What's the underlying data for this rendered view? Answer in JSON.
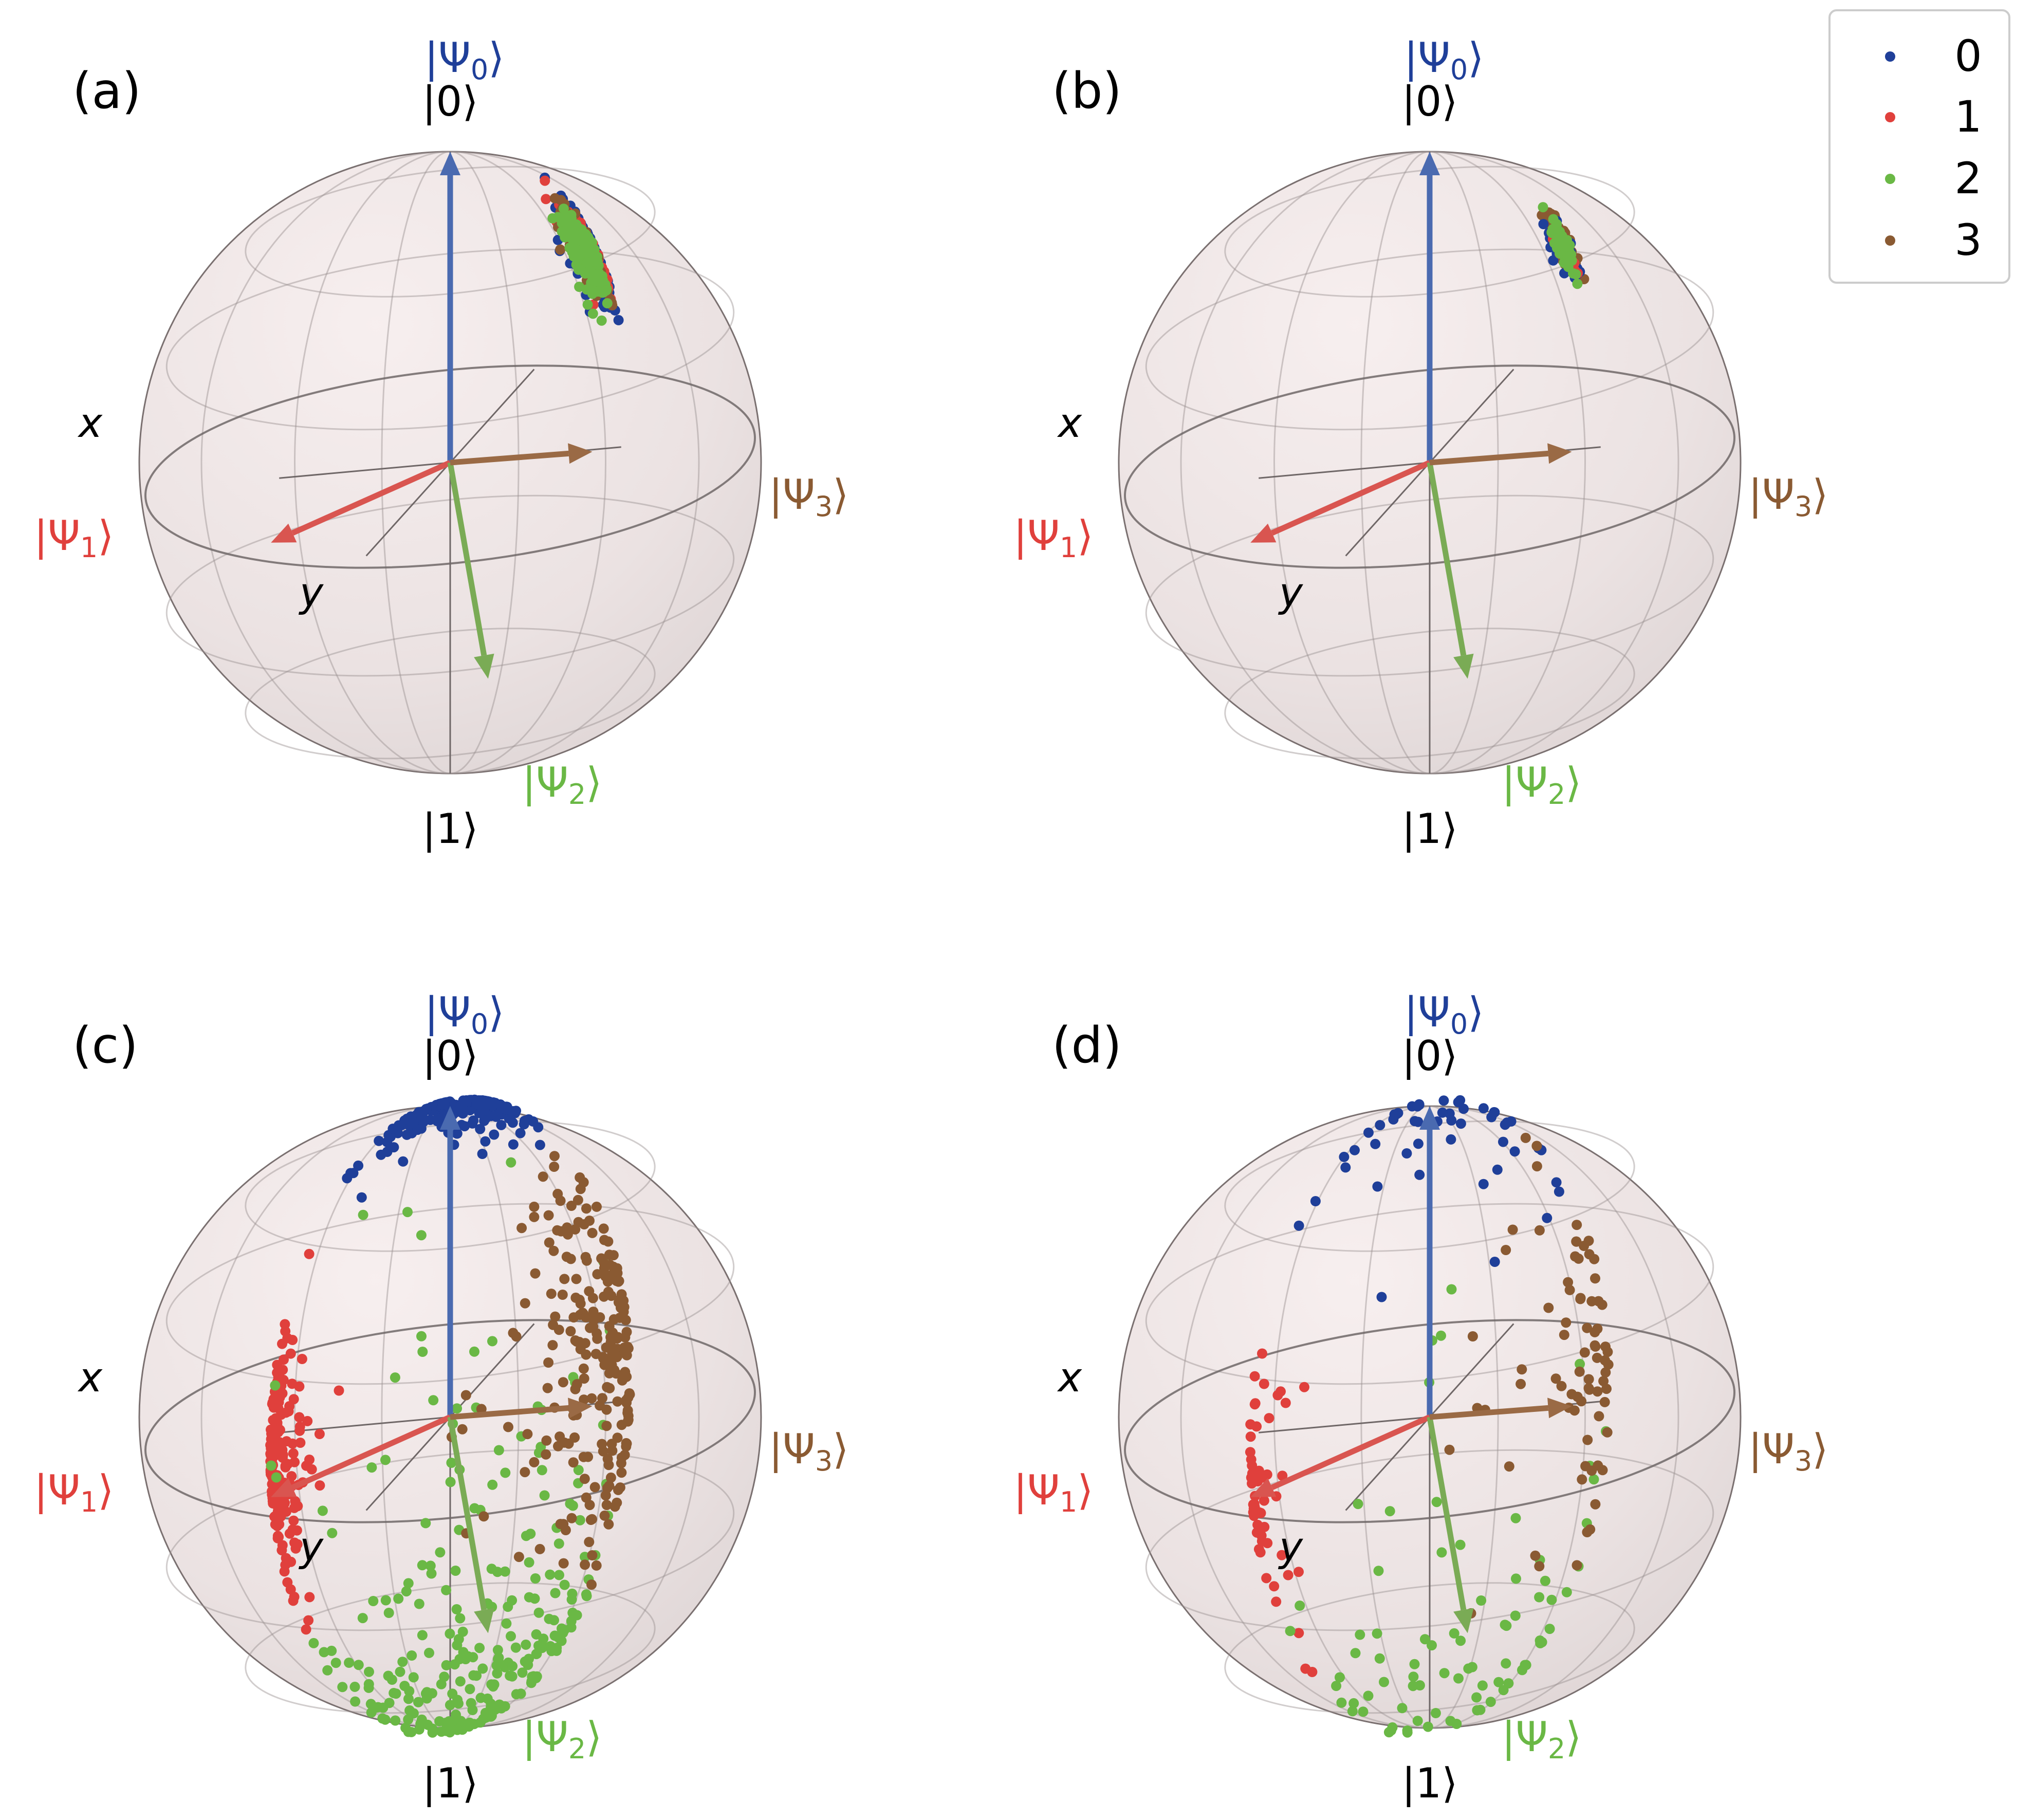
{
  "chart_data": {
    "type": "scatter",
    "projection": "bloch-sphere",
    "colors": {
      "0": "#1f3f99",
      "1": "#e0403c",
      "2": "#6ab845",
      "3": "#8a5a32"
    },
    "arrow_colors": {
      "0": "#4a6ab0",
      "1": "#d95550",
      "2": "#7aab55",
      "3": "#9a6a45"
    },
    "label_colors": {
      "0": "#1f3f99",
      "1": "#e0403c",
      "2": "#6ab845",
      "3": "#8a5a32"
    },
    "legend": {
      "position": "top-right",
      "entries": [
        {
          "class": "0",
          "label": "0"
        },
        {
          "class": "1",
          "label": "1"
        },
        {
          "class": "2",
          "label": "2"
        },
        {
          "class": "3",
          "label": "3"
        }
      ]
    },
    "sphere_labels": {
      "x": "x",
      "y": "y",
      "north": "|0⟩",
      "south": "|1⟩",
      "psi_prefix": "|Ψ",
      "psi_suffix": "⟩",
      "psi0_sub": "0",
      "psi1_sub": "1",
      "psi2_sub": "2",
      "psi3_sub": "3"
    },
    "reference_vectors": [
      {
        "class": "0",
        "label": "|Ψ0⟩",
        "x": 0.0,
        "y": 0.0,
        "z": 1.0
      },
      {
        "class": "1",
        "label": "|Ψ1⟩",
        "x": 0.95,
        "y": 0.3,
        "z": -0.15
      },
      {
        "class": "2",
        "label": "|Ψ2⟩",
        "x": -0.5,
        "y": 0.85,
        "z": -0.55
      },
      {
        "class": "3",
        "label": "|Ψ3⟩",
        "x": -0.7,
        "y": -0.4,
        "z": -0.08
      }
    ],
    "panels": [
      {
        "label": "(a)",
        "clusters": [
          {
            "class": "0",
            "n": 150,
            "center": [
              -0.62,
              -0.55,
              0.55
            ],
            "spread": 0.12,
            "seed": 11
          },
          {
            "class": "1",
            "n": 90,
            "center": [
              -0.62,
              -0.55,
              0.55
            ],
            "spread": 0.1,
            "seed": 12
          },
          {
            "class": "3",
            "n": 90,
            "center": [
              -0.6,
              -0.58,
              0.55
            ],
            "spread": 0.1,
            "seed": 13
          },
          {
            "class": "2",
            "n": 260,
            "center": [
              -0.6,
              -0.6,
              0.52
            ],
            "spread": 0.08,
            "seed": 14
          }
        ]
      },
      {
        "label": "(b)",
        "clusters": [
          {
            "class": "3",
            "n": 45,
            "center": [
              -0.6,
              -0.55,
              0.6
            ],
            "spread": 0.07,
            "seed": 21
          },
          {
            "class": "0",
            "n": 45,
            "center": [
              -0.6,
              -0.6,
              0.55
            ],
            "spread": 0.06,
            "seed": 22
          },
          {
            "class": "1",
            "n": 10,
            "center": [
              -0.6,
              -0.6,
              0.55
            ],
            "spread": 0.05,
            "seed": 23
          },
          {
            "class": "2",
            "n": 80,
            "center": [
              -0.6,
              -0.6,
              0.55
            ],
            "spread": 0.05,
            "seed": 24
          }
        ]
      },
      {
        "label": "(c)",
        "clusters": [
          {
            "class": "0",
            "n": 200,
            "center": [
              0.0,
              -0.2,
              1.0
            ],
            "spread": 0.22,
            "seed": 31
          },
          {
            "class": "1",
            "n": 170,
            "center": [
              1.0,
              0.05,
              -0.1
            ],
            "spread": 0.22,
            "seed": 32
          },
          {
            "class": "2",
            "n": 260,
            "center": [
              -0.3,
              0.5,
              -0.75
            ],
            "spread": 0.55,
            "seed": 33
          },
          {
            "class": "3",
            "n": 230,
            "center": [
              -0.6,
              -0.65,
              0.0
            ],
            "spread": 0.35,
            "seed": 34
          }
        ]
      },
      {
        "label": "(d)",
        "clusters": [
          {
            "class": "0",
            "n": 50,
            "center": [
              0.0,
              -0.15,
              1.0
            ],
            "spread": 0.35,
            "seed": 41
          },
          {
            "class": "1",
            "n": 55,
            "center": [
              1.0,
              0.1,
              -0.2
            ],
            "spread": 0.25,
            "seed": 42
          },
          {
            "class": "2",
            "n": 80,
            "center": [
              -0.3,
              0.5,
              -0.75
            ],
            "spread": 0.6,
            "seed": 43
          },
          {
            "class": "3",
            "n": 75,
            "center": [
              -0.6,
              -0.6,
              0.05
            ],
            "spread": 0.4,
            "seed": 44
          }
        ]
      }
    ]
  }
}
